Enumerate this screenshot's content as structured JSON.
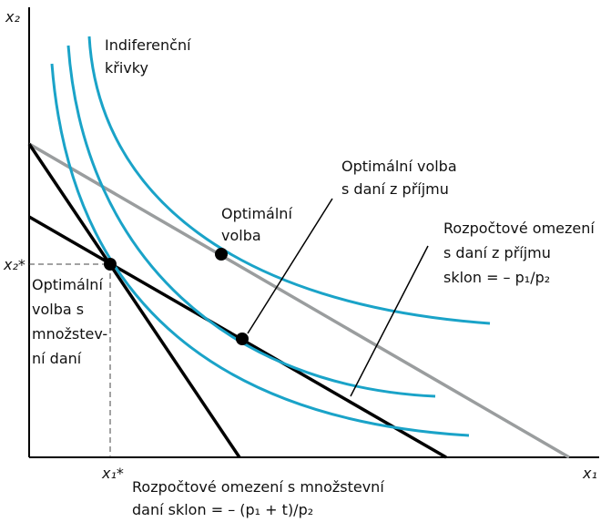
{
  "axes": {
    "y_label": "x₂",
    "x_label": "x₁",
    "y_star": "x₂*",
    "x_star": "x₁*"
  },
  "labels": {
    "curves": [
      "Indiferenční",
      "křivky"
    ],
    "optimal_income": [
      "Optimální volba",
      "s daní z příjmu"
    ],
    "optimal": [
      "Optimální",
      "volba"
    ],
    "budget_income": [
      "Rozpočtové omezení",
      "s daní z příjmu",
      "sklon = – p₁/p₂"
    ],
    "optimal_quantity": [
      "Optimální",
      "volba s",
      "množstev-",
      "ní daní"
    ],
    "budget_quantity": [
      "Rozpočtové omezení s množstevní",
      "daní sklon = – (p₁ + t)/p₂"
    ]
  }
}
